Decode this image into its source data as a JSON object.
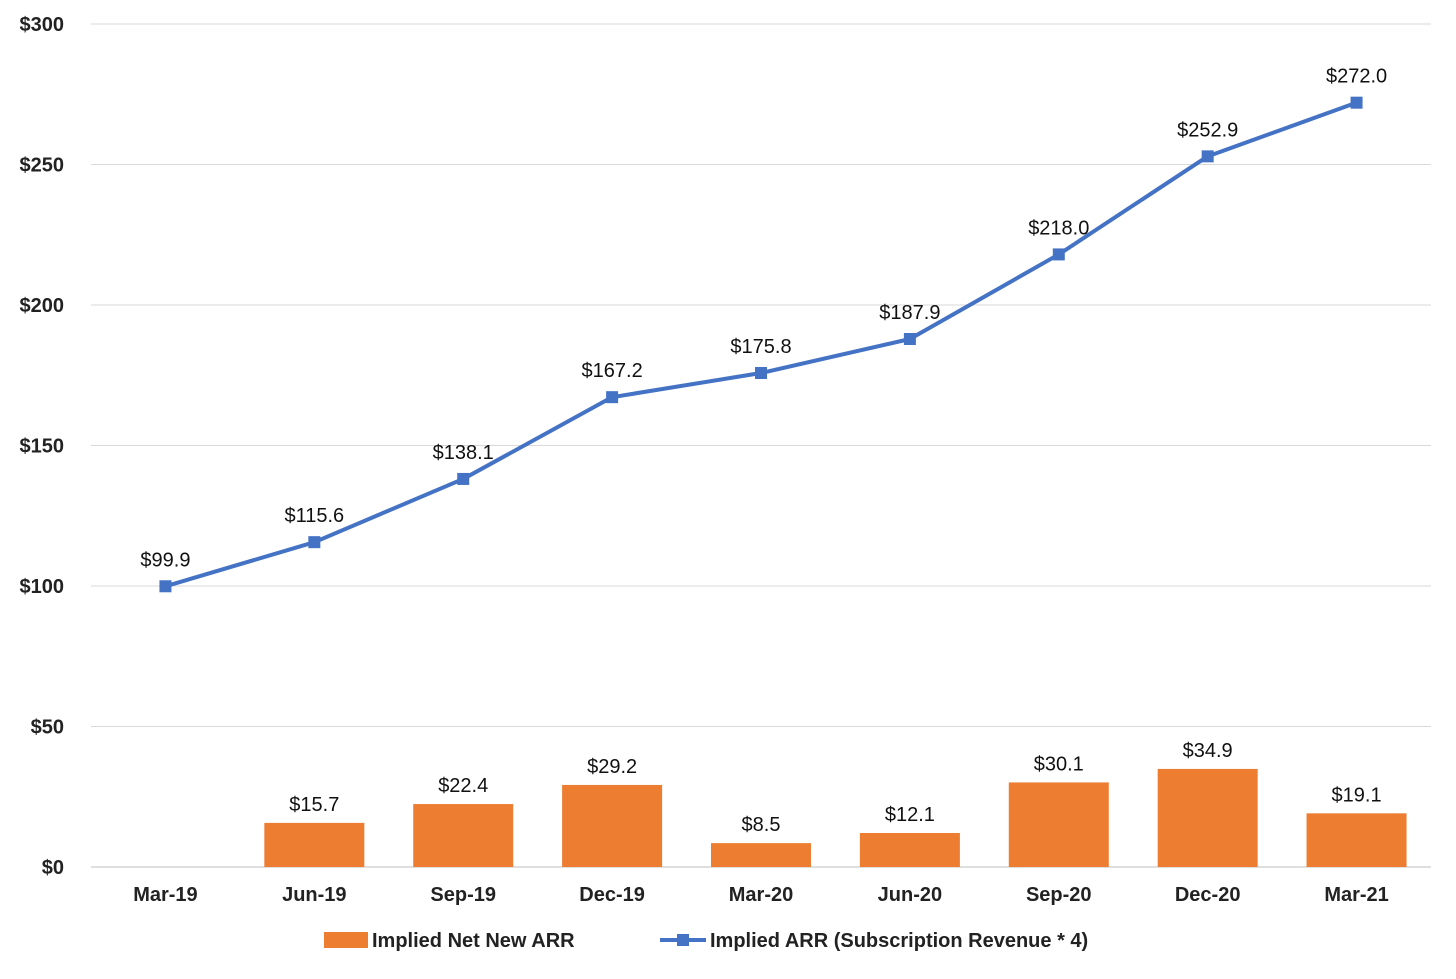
{
  "chart_data": {
    "type": "bar",
    "categories": [
      "Mar-19",
      "Jun-19",
      "Sep-19",
      "Dec-19",
      "Mar-20",
      "Jun-20",
      "Sep-20",
      "Dec-20",
      "Mar-21"
    ],
    "ylim": [
      0,
      300
    ],
    "yticks": [
      0,
      50,
      100,
      150,
      200,
      250,
      300
    ],
    "ytick_labels": [
      "$0",
      "$50",
      "$100",
      "$150",
      "$200",
      "$250",
      "$300"
    ],
    "grid": true,
    "legend_position": "bottom",
    "series": [
      {
        "name": "Implied Net New ARR",
        "type": "bar",
        "color": "#ED7D31",
        "values": [
          null,
          15.7,
          22.4,
          29.2,
          8.5,
          12.1,
          30.1,
          34.9,
          19.1
        ],
        "labels": [
          "",
          "$15.7",
          "$22.4",
          "$29.2",
          "$8.5",
          "$12.1",
          "$30.1",
          "$34.9",
          "$19.1"
        ]
      },
      {
        "name": "Implied ARR (Subscription Revenue * 4)",
        "type": "line",
        "marker": "square",
        "color": "#4472C4",
        "values": [
          99.9,
          115.6,
          138.1,
          167.2,
          175.8,
          187.9,
          218.0,
          252.9,
          272.0
        ],
        "labels": [
          "$99.9",
          "$115.6",
          "$138.1",
          "$167.2",
          "$175.8",
          "$187.9",
          "$218.0",
          "$252.9",
          "$272.0"
        ]
      }
    ]
  }
}
